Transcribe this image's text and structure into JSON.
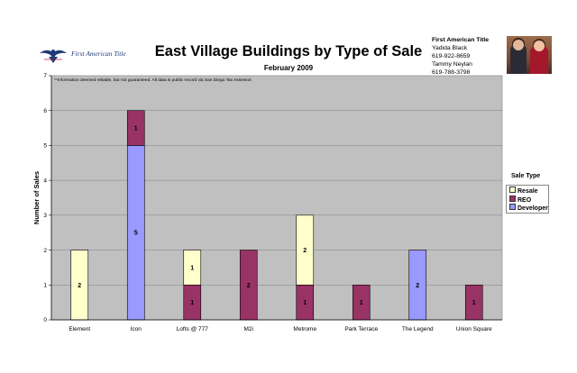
{
  "header": {
    "logo_text": "First American Title",
    "title": "East Village Buildings by Type of Sale",
    "subtitle": "February 2009"
  },
  "contact": {
    "company": "First American Title",
    "name1": "Yadida Black",
    "phone1": "619-922-8659",
    "name2": "Tammy Neylan",
    "phone2": "619-788-3798"
  },
  "photo": {
    "icon": "agents-photo"
  },
  "legend": {
    "title": "Sale Type",
    "items": [
      "Resale",
      "REO",
      "Developer"
    ]
  },
  "colors": {
    "Developer": "#9999ff",
    "REO": "#993366",
    "Resale": "#ffffcc",
    "plot_background": "#c0c0c0",
    "gridline": "#8c8c8c"
  },
  "chart_data": {
    "type": "bar",
    "stacked": true,
    "title": "East Village Buildings by Type of Sale",
    "subtitle": "February 2009",
    "note": "**Information deemed reliable, but not guaranteed.  All data is public record via San Diego Tax Assessor.",
    "xlabel": "",
    "ylabel": "Number of Sales",
    "ylim": [
      0,
      7
    ],
    "yticks": [
      0,
      1,
      2,
      3,
      4,
      5,
      6,
      7
    ],
    "grid": true,
    "legend_position": "right",
    "categories": [
      "Element",
      "Icon",
      "Lofts @ 777",
      "M2i",
      "Metrome",
      "Park Terrace",
      "The Legend",
      "Union Square"
    ],
    "series": [
      {
        "name": "Developer",
        "values": [
          0,
          5,
          0,
          0,
          0,
          0,
          2,
          0
        ]
      },
      {
        "name": "REO",
        "values": [
          0,
          1,
          1,
          2,
          1,
          1,
          0,
          1
        ]
      },
      {
        "name": "Resale",
        "values": [
          2,
          0,
          1,
          0,
          2,
          0,
          0,
          0
        ]
      }
    ]
  }
}
